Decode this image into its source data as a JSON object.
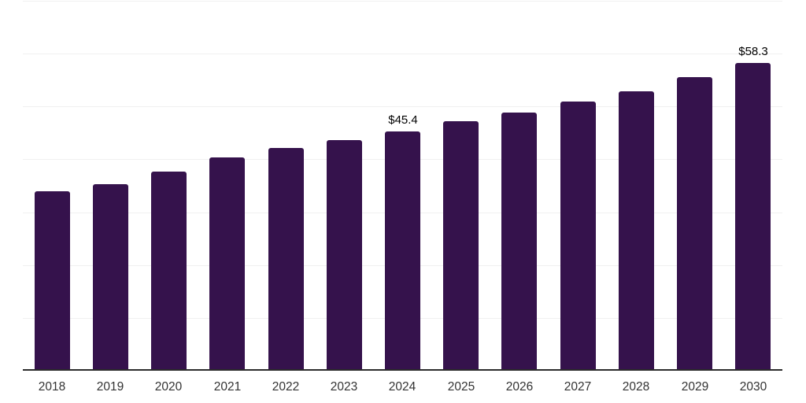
{
  "chart_data": {
    "type": "bar",
    "title": "",
    "xlabel": "",
    "ylabel": "",
    "categories": [
      "2018",
      "2019",
      "2020",
      "2021",
      "2022",
      "2023",
      "2024",
      "2025",
      "2026",
      "2027",
      "2028",
      "2029",
      "2030"
    ],
    "values": [
      34.0,
      35.4,
      37.7,
      40.4,
      42.3,
      43.8,
      45.4,
      47.3,
      48.9,
      51.1,
      53.0,
      55.6,
      58.3
    ],
    "data_labels": [
      {
        "category": "2024",
        "text": "$45.4"
      },
      {
        "category": "2030",
        "text": "$58.3"
      }
    ],
    "ylim": [
      0,
      70
    ],
    "grid_step": 10,
    "grid": true,
    "legend": false,
    "bar_color": "#35124c",
    "gridline_color": "#f0f0f0",
    "axis_line_color": "#2b2b2b",
    "tick_label_color": "#333333",
    "data_label_color": "#000000"
  }
}
